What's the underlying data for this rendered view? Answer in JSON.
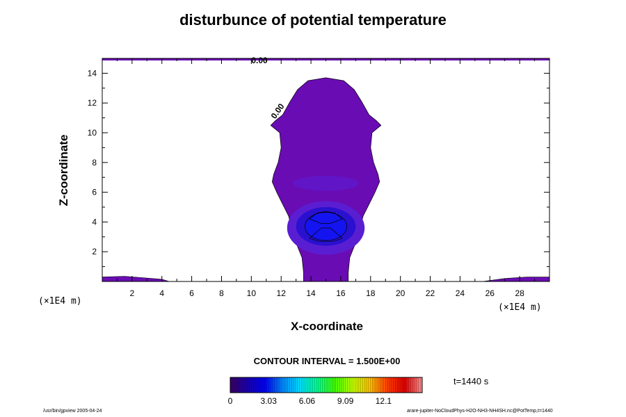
{
  "chart_data": {
    "type": "heatmap",
    "title": "disturbunce of potential temperature",
    "xlabel": "X-coordinate",
    "ylabel": "Z-coordinate",
    "x_unit": "(×1E4 m)",
    "y_unit": "(×1E4 m)",
    "xlim": [
      0,
      30
    ],
    "ylim": [
      0,
      15
    ],
    "x_ticks": [
      2,
      4,
      6,
      8,
      10,
      12,
      14,
      16,
      18,
      20,
      22,
      24,
      26,
      28
    ],
    "y_ticks": [
      2,
      4,
      6,
      8,
      10,
      12,
      14
    ],
    "contour_labels": [
      "0.00",
      "0.00"
    ],
    "contour_interval": "CONTOUR INTERVAL = 1.500E+00",
    "time": "t=1440 s",
    "colorbar": {
      "tick_labels": [
        "0",
        "3.03",
        "6.06",
        "9.09",
        "12.1"
      ],
      "tick_values": [
        0,
        3.03,
        6.06,
        9.09,
        12.1
      ],
      "min": 0,
      "max": 15.15,
      "colors": [
        "#3a0066",
        "#1a00a8",
        "#0000ff",
        "#0088ff",
        "#00e0ff",
        "#00ff90",
        "#40ff00",
        "#c0ff00",
        "#ffc000",
        "#ff4000",
        "#e00000",
        "#ff9090"
      ]
    },
    "region_colors": {
      "background": "#6a0cb4",
      "mid": "#5a1ed2",
      "inner": "#2a10cf",
      "core": "#1414f0"
    }
  },
  "footer": {
    "left": "/usr/bin/gpview 2005-04-24",
    "right": "arare-jupiter-NoCloudPhys-H2O-NH3-NH4SH.nc@PotTemp,t=1440"
  }
}
